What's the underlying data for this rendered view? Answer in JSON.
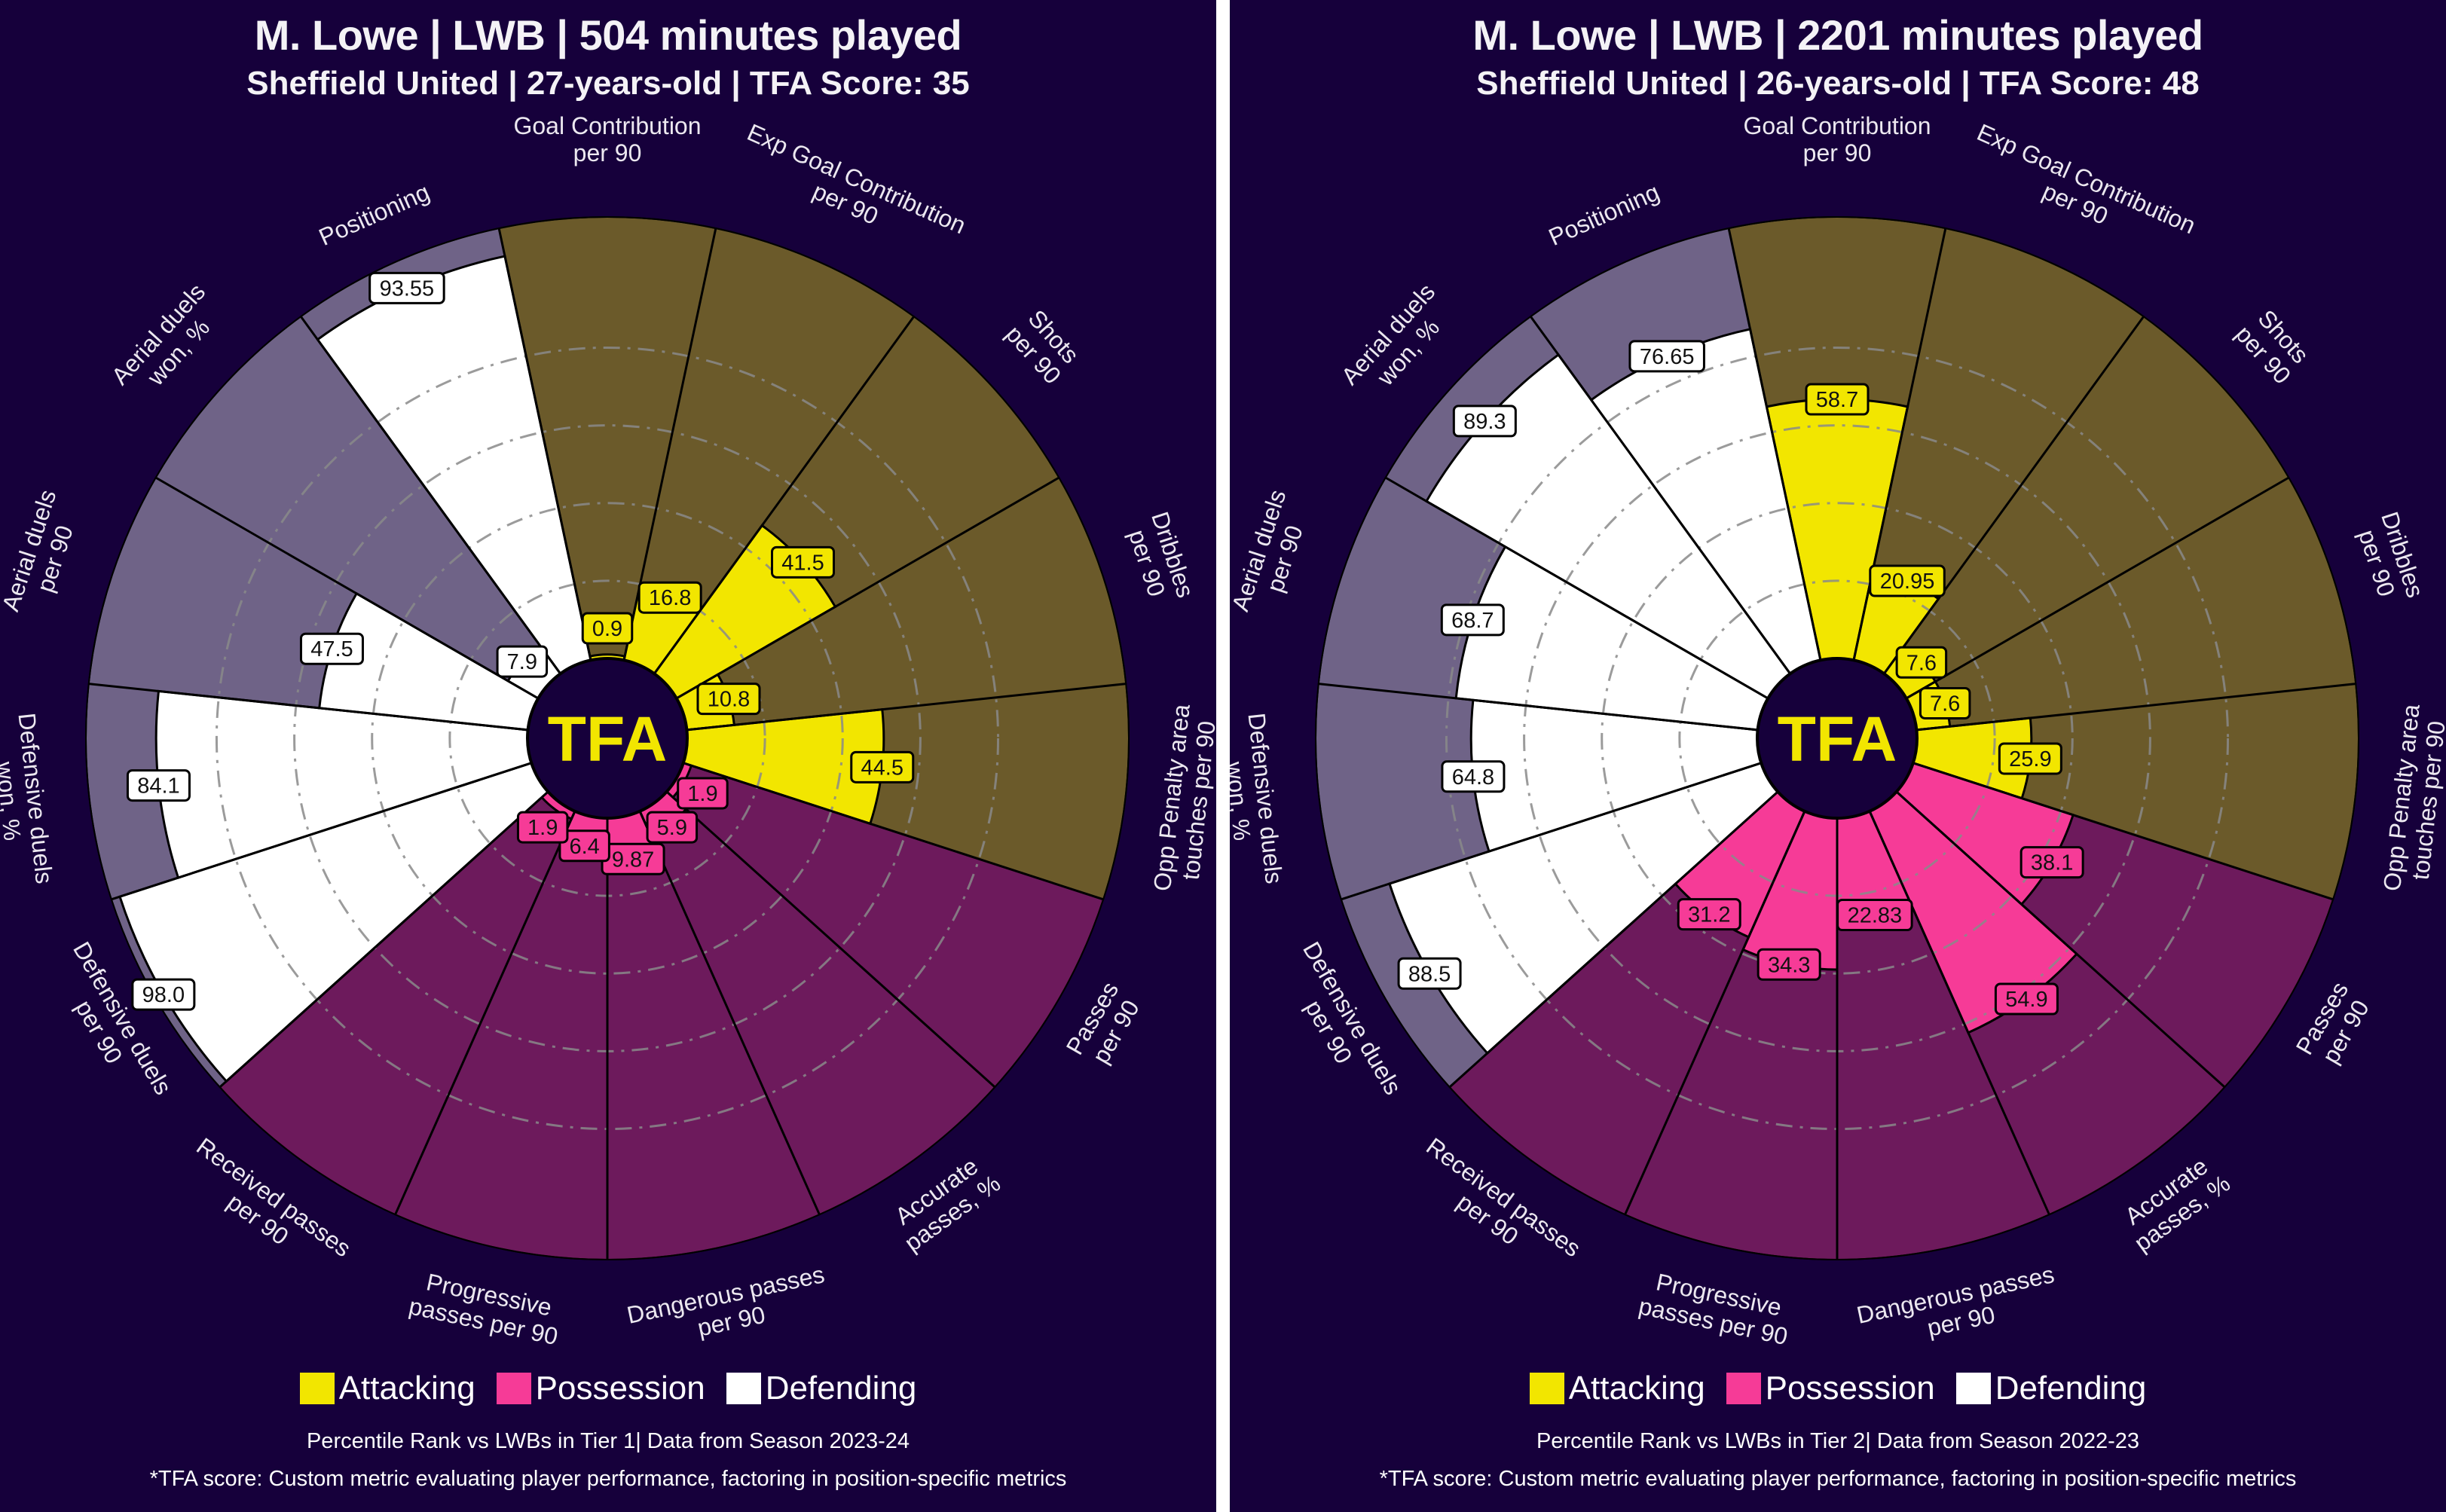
{
  "colors": {
    "background": "#16003b",
    "attacking": "#f2e600",
    "attacking_bg": "#6b5a2a",
    "possession": "#f63b97",
    "possession_bg": "#6d1a5c",
    "defending": "#ffffff",
    "defending_bg": "#6f6387",
    "gridline": "#8a8a8a",
    "divider": "#ffffff"
  },
  "legend": [
    {
      "label": "Attacking",
      "color": "#f2e600"
    },
    {
      "label": "Possession",
      "color": "#f63b97"
    },
    {
      "label": "Defending",
      "color": "#ffffff"
    }
  ],
  "center_logo": "TFA",
  "panels": [
    {
      "title": "M. Lowe | LWB | 504 minutes played",
      "subtitle": "Sheffield United | 27-years-old | TFA Score: 35",
      "footnote_1": "Percentile Rank vs LWBs in Tier 1| Data from Season 2023-24",
      "footnote_2": "*TFA score: Custom metric evaluating player performance, factoring in position-specific metrics"
    },
    {
      "title": "M. Lowe | LWB | 2201 minutes played",
      "subtitle": "Sheffield United | 26-years-old | TFA Score: 48",
      "footnote_1": "Percentile Rank vs LWBs in Tier 2| Data from Season 2022-23",
      "footnote_2": "*TFA score: Custom metric evaluating player performance, factoring in position-specific metrics"
    }
  ],
  "chart_data": [
    {
      "type": "radial-bar (pizza)",
      "title": "M. Lowe | LWB | 504 minutes played",
      "subtitle": "Sheffield United | 27-years-old | TFA Score: 35",
      "rlim": [
        0,
        100
      ],
      "gridlines": [
        17.6,
        35.2,
        52.8,
        70.4
      ],
      "grid": true,
      "legend_position": "bottom",
      "categories": [
        {
          "label": [
            "Goal Contribution",
            "per 90"
          ],
          "group": "Attacking",
          "value": 0.9,
          "display": "0.9"
        },
        {
          "label": [
            "Exp Goal Contribution",
            "per 90"
          ],
          "group": "Attacking",
          "value": 16.8,
          "display": "16.8"
        },
        {
          "label": [
            "Shots",
            "per 90"
          ],
          "group": "Attacking",
          "value": 41.5,
          "display": "41.5"
        },
        {
          "label": [
            "Dribbles",
            "per 90"
          ],
          "group": "Attacking",
          "value": 10.8,
          "display": "10.8"
        },
        {
          "label": [
            "Opp Penalty area",
            "touches per 90"
          ],
          "group": "Attacking",
          "value": 44.5,
          "display": "44.5"
        },
        {
          "label": [
            "Passes",
            "per 90"
          ],
          "group": "Possession",
          "value": 1.9,
          "display": "1.9"
        },
        {
          "label": [
            "Accurate",
            "passes, %"
          ],
          "group": "Possession",
          "value": 5.9,
          "display": "5.9"
        },
        {
          "label": [
            "Dangerous passes",
            "per 90"
          ],
          "group": "Possession",
          "value": 9.87,
          "display": "9.87"
        },
        {
          "label": [
            "Progressive",
            "passes per 90"
          ],
          "group": "Possession",
          "value": 6.4,
          "display": "6.4"
        },
        {
          "label": [
            "Received passes",
            "per 90"
          ],
          "group": "Possession",
          "value": 1.9,
          "display": "1.9"
        },
        {
          "label": [
            "Defensive duels",
            "per 90"
          ],
          "group": "Defending",
          "value": 98.0,
          "display": "98.0"
        },
        {
          "label": [
            "Defensive duels",
            "won, %"
          ],
          "group": "Defending",
          "value": 84.1,
          "display": "84.1"
        },
        {
          "label": [
            "Aerial duels",
            "per 90"
          ],
          "group": "Defending",
          "value": 47.5,
          "display": "47.5"
        },
        {
          "label": [
            "Aerial duels",
            "won, %"
          ],
          "group": "Defending",
          "value": 7.9,
          "display": "7.9"
        },
        {
          "label": [
            "Positioning"
          ],
          "group": "Defending",
          "value": 93.55,
          "display": "93.55"
        }
      ]
    },
    {
      "type": "radial-bar (pizza)",
      "title": "M. Lowe | LWB | 2201 minutes played",
      "subtitle": "Sheffield United | 26-years-old | TFA Score: 48",
      "rlim": [
        0,
        100
      ],
      "gridlines": [
        17.6,
        35.2,
        52.8,
        70.4
      ],
      "grid": true,
      "legend_position": "bottom",
      "categories": [
        {
          "label": [
            "Goal Contribution",
            "per 90"
          ],
          "group": "Attacking",
          "value": 58.7,
          "display": "58.7"
        },
        {
          "label": [
            "Exp Goal Contribution",
            "per 90"
          ],
          "group": "Attacking",
          "value": 20.95,
          "display": "20.95"
        },
        {
          "label": [
            "Shots",
            "per 90"
          ],
          "group": "Attacking",
          "value": 7.6,
          "display": "7.6"
        },
        {
          "label": [
            "Dribbles",
            "per 90"
          ],
          "group": "Attacking",
          "value": 7.6,
          "display": "7.6"
        },
        {
          "label": [
            "Opp Penalty area",
            "touches per 90"
          ],
          "group": "Attacking",
          "value": 25.9,
          "display": "25.9"
        },
        {
          "label": [
            "Passes",
            "per 90"
          ],
          "group": "Possession",
          "value": 38.1,
          "display": "38.1"
        },
        {
          "label": [
            "Accurate",
            "passes, %"
          ],
          "group": "Possession",
          "value": 54.9,
          "display": "54.9"
        },
        {
          "label": [
            "Dangerous passes",
            "per 90"
          ],
          "group": "Possession",
          "value": 22.83,
          "display": "22.83"
        },
        {
          "label": [
            "Progressive",
            "passes per 90"
          ],
          "group": "Possession",
          "value": 34.3,
          "display": "34.3"
        },
        {
          "label": [
            "Received passes",
            "per 90"
          ],
          "group": "Possession",
          "value": 31.2,
          "display": "31.2"
        },
        {
          "label": [
            "Defensive duels",
            "per 90"
          ],
          "group": "Defending",
          "value": 88.5,
          "display": "88.5"
        },
        {
          "label": [
            "Defensive duels",
            "won, %"
          ],
          "group": "Defending",
          "value": 64.8,
          "display": "64.8"
        },
        {
          "label": [
            "Aerial duels",
            "per 90"
          ],
          "group": "Defending",
          "value": 68.7,
          "display": "68.7"
        },
        {
          "label": [
            "Aerial duels",
            "won, %"
          ],
          "group": "Defending",
          "value": 89.3,
          "display": "89.3"
        },
        {
          "label": [
            "Positioning"
          ],
          "group": "Defending",
          "value": 76.65,
          "display": "76.65"
        }
      ]
    }
  ]
}
